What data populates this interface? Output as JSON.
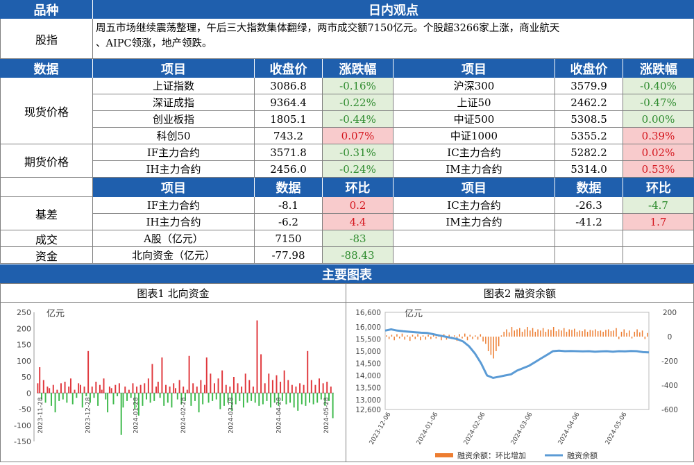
{
  "header": {
    "col1": "品种",
    "col2": "日内观点"
  },
  "stock_index": {
    "label": "股指",
    "text_line1": "周五市场继续震荡整理，午后三大指数集体翻绿，两市成交额7150亿元。个股超3266家上涨，商业航天",
    "text_line2": "、AIPC领涨，地产领跌。"
  },
  "price_header": {
    "data": "数据",
    "item": "项目",
    "close": "收盘价",
    "change": "涨跌幅"
  },
  "spot": {
    "label": "现货价格",
    "rows": [
      {
        "l_item": "上证指数",
        "l_close": "3086.8",
        "l_chg": "-0.16%",
        "r_item": "沪深300",
        "r_close": "3579.9",
        "r_chg": "-0.40%"
      },
      {
        "l_item": "深证成指",
        "l_close": "9364.4",
        "l_chg": "-0.22%",
        "r_item": "上证50",
        "r_close": "2462.2",
        "r_chg": "-0.47%"
      },
      {
        "l_item": "创业板指",
        "l_close": "1805.1",
        "l_chg": "-0.44%",
        "r_item": "中证500",
        "r_close": "5308.5",
        "r_chg": "0.00%"
      },
      {
        "l_item": "科创50",
        "l_close": "743.2",
        "l_chg": "0.07%",
        "r_item": "中证1000",
        "r_close": "5355.2",
        "r_chg": "0.39%"
      }
    ]
  },
  "futures": {
    "label": "期货价格",
    "rows": [
      {
        "l_item": "IF主力合约",
        "l_close": "3571.8",
        "l_chg": "-0.31%",
        "r_item": "IC主力合约",
        "r_close": "5282.2",
        "r_chg": "0.02%"
      },
      {
        "l_item": "IH主力合约",
        "l_close": "2456.0",
        "l_chg": "-0.24%",
        "r_item": "IM主力合约",
        "r_close": "5314.0",
        "r_chg": "0.53%"
      }
    ]
  },
  "basis_header": {
    "item": "项目",
    "data": "数据",
    "mom": "环比"
  },
  "basis": {
    "label": "基差",
    "rows": [
      {
        "l_item": "IF主力合约",
        "l_data": "-8.1",
        "l_mom": "0.2",
        "r_item": "IC主力合约",
        "r_data": "-26.3",
        "r_mom": "-4.7"
      },
      {
        "l_item": "IH主力合约",
        "l_data": "-6.2",
        "l_mom": "4.4",
        "r_item": "IM主力合约",
        "r_data": "-41.2",
        "r_mom": "1.7"
      }
    ]
  },
  "volume": {
    "label": "成交",
    "item": "A股（亿元）",
    "data": "7150",
    "mom": "-83"
  },
  "capital": {
    "label": "资金",
    "item": "北向资金（亿元）",
    "data": "-77.98",
    "mom": "-88.43"
  },
  "main_charts_title": "主要图表",
  "chart_data": [
    {
      "type": "bar",
      "title": "图表1  北向资金",
      "ylabel": "亿元",
      "ylim": [
        -150,
        250
      ],
      "yticks": [
        "250",
        "200",
        "150",
        "100",
        "50",
        "0",
        "-50",
        "-100",
        "-150"
      ],
      "xticks": [
        "2023-11-28",
        "2023-12-28",
        "2024-01-28",
        "2024-02-28",
        "2024-03-28",
        "2024-04-28",
        "2024-05-28"
      ],
      "colors": {
        "positive": "#e0373c",
        "negative": "#3cb94a"
      },
      "values": [
        30,
        80,
        -20,
        40,
        -30,
        20,
        15,
        -40,
        25,
        -60,
        10,
        -25,
        30,
        -20,
        35,
        -30,
        20,
        45,
        -35,
        10,
        -15,
        30,
        25,
        -45,
        20,
        -10,
        130,
        -30,
        20,
        -15,
        35,
        -40,
        25,
        10,
        45,
        -20,
        -60,
        20,
        15,
        -35,
        25,
        -10,
        30,
        -130,
        -45,
        20,
        -25,
        10,
        -15,
        30,
        -50,
        20,
        -70,
        25,
        -40,
        30,
        -20,
        45,
        -30,
        90,
        -25,
        20,
        35,
        -15,
        110,
        -40,
        25,
        -30,
        20,
        -45,
        30,
        15,
        -20,
        40,
        -35,
        20,
        -25,
        10,
        115,
        -40,
        30,
        -25,
        20,
        -60,
        40,
        -35,
        25,
        110,
        -30,
        60,
        -25,
        30,
        -20,
        45,
        -50,
        70,
        -40,
        25,
        -30,
        20,
        -55,
        50,
        -35,
        30,
        -25,
        20,
        -45,
        60,
        -30,
        40,
        -25,
        20,
        -30,
        225,
        -40,
        120,
        -35,
        30,
        -25,
        60,
        -45,
        40,
        -30,
        55,
        -40,
        35,
        -25,
        70,
        -35,
        40,
        -30,
        25,
        -45,
        20,
        -55,
        30,
        -35,
        25,
        -40,
        130,
        -30,
        40,
        -35,
        25,
        -30,
        45,
        -20,
        30,
        -40,
        35,
        -25,
        20,
        -78
      ]
    },
    {
      "type": "line+bar",
      "title": "图表2  融资余额",
      "ylabel": "亿元",
      "ylim_left": [
        12600,
        16600
      ],
      "ylim_right": [
        -600,
        200
      ],
      "yticks_left": [
        "16,600",
        "16,000",
        "15,500",
        "15,000",
        "14,500",
        "14,000",
        "13,500",
        "13,000",
        "12,600"
      ],
      "yticks_right": [
        "200",
        "0",
        "-200",
        "-400",
        "-600"
      ],
      "xticks": [
        "2023-12-06",
        "2024-01-06",
        "2024-02-06",
        "2024-03-06",
        "2024-04-06",
        "2024-05-06"
      ],
      "series": [
        {
          "name": "融资余额：环比增加",
          "axis": "right",
          "color": "#ed7d31",
          "values": [
            10,
            -20,
            15,
            -30,
            20,
            -15,
            25,
            -25,
            10,
            -35,
            15,
            -20,
            20,
            -30,
            10,
            -25,
            15,
            -20,
            25,
            -15,
            10,
            -30,
            20,
            -25,
            15,
            -20,
            10,
            -35,
            20,
            -15,
            25,
            -30,
            15,
            -20,
            10,
            -25,
            20,
            -40,
            -60,
            -120,
            -150,
            -180,
            -120,
            -80,
            10,
            40,
            60,
            35,
            80,
            50,
            60,
            70,
            40,
            60,
            80,
            50,
            70,
            40,
            60,
            50,
            70,
            40,
            60,
            55,
            80,
            45,
            60,
            50,
            70,
            40,
            60,
            55,
            65,
            40,
            50,
            45,
            60,
            40,
            55,
            50,
            60,
            45,
            50,
            40,
            55,
            60,
            45,
            50,
            70,
            -20,
            40,
            60,
            30,
            50,
            -15,
            40,
            60,
            35,
            50,
            -20,
            30
          ]
        },
        {
          "name": "融资余额",
          "axis": "left",
          "color": "#5b9bd5",
          "values": [
            15850,
            15900,
            15850,
            15820,
            15800,
            15780,
            15760,
            15750,
            15700,
            15650,
            15600,
            15550,
            15500,
            15400,
            15200,
            14900,
            14500,
            14000,
            13900,
            13950,
            14000,
            14050,
            14200,
            14300,
            14400,
            14550,
            14700,
            14850,
            15000,
            15020,
            15000,
            15010,
            15000,
            14990,
            15000,
            14980,
            14990,
            15000,
            14980,
            15000,
            14990,
            15010,
            15000,
            14960,
            14950
          ]
        }
      ],
      "legend_position": "bottom"
    }
  ]
}
